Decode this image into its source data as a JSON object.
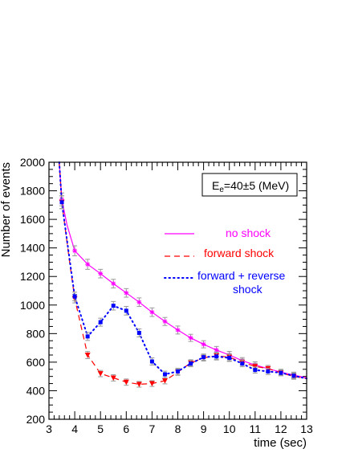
{
  "chart_data": {
    "type": "line",
    "title": "",
    "xlabel": "time (sec)",
    "ylabel": "Number of events",
    "xlim": [
      3,
      13
    ],
    "ylim": [
      200,
      2000
    ],
    "x_ticks": [
      "3",
      "4",
      "5",
      "6",
      "7",
      "8",
      "9",
      "10",
      "11",
      "12",
      "13"
    ],
    "y_ticks": [
      "200",
      "400",
      "600",
      "800",
      "1000",
      "1200",
      "1400",
      "1600",
      "1800",
      "2000"
    ],
    "grid": false,
    "legend_position": "right",
    "annotation": {
      "base": "E",
      "subscript": "e",
      "text": "=40±5 (MeV)"
    },
    "series": [
      {
        "name": "no shock",
        "color": "#ff00ff",
        "line_style": "solid",
        "marker": "star",
        "x": [
          3.5,
          4.0,
          4.5,
          5.0,
          5.5,
          6.0,
          6.5,
          7.0,
          7.5,
          8.0,
          8.5,
          9.0,
          9.5,
          10.0,
          10.5,
          11.0,
          11.5,
          12.0,
          12.5
        ],
        "y": [
          1740,
          1380,
          1285,
          1220,
          1150,
          1085,
          1020,
          950,
          885,
          825,
          770,
          725,
          685,
          650,
          610,
          580,
          555,
          530,
          510
        ],
        "y_err": [
          45,
          35,
          35,
          30,
          30,
          30,
          30,
          30,
          28,
          28,
          25,
          25,
          25,
          25,
          22,
          22,
          22,
          20,
          20
        ],
        "curve_x": [
          3.4,
          3.5,
          3.7,
          4.0,
          4.5,
          5.0,
          5.5,
          6.0,
          6.5,
          7.0,
          7.5,
          8.0,
          8.5,
          9.0,
          9.5,
          10.0,
          10.5,
          11.0,
          11.5,
          12.0,
          12.5,
          13.0
        ],
        "curve_y": [
          2000,
          1740,
          1560,
          1380,
          1285,
          1220,
          1150,
          1085,
          1020,
          950,
          885,
          825,
          770,
          725,
          685,
          650,
          610,
          580,
          555,
          530,
          510,
          490
        ]
      },
      {
        "name": "forward shock",
        "color": "#ff0000",
        "line_style": "dashed",
        "marker": "triangle-down",
        "x": [
          3.5,
          4.0,
          4.5,
          5.0,
          5.5,
          6.0,
          6.5,
          7.0,
          7.5,
          8.0,
          8.5,
          9.0,
          9.5,
          10.0,
          10.5,
          11.0,
          11.5,
          12.0,
          12.5
        ],
        "y": [
          1720,
          1045,
          650,
          520,
          490,
          460,
          445,
          450,
          470,
          530,
          595,
          630,
          645,
          635,
          600,
          570,
          555,
          525,
          500
        ],
        "y_err": [
          45,
          30,
          25,
          22,
          22,
          22,
          20,
          20,
          22,
          22,
          22,
          22,
          25,
          25,
          22,
          22,
          22,
          20,
          20
        ],
        "curve_x": [
          3.4,
          3.5,
          3.8,
          4.0,
          4.5,
          5.0,
          5.5,
          6.0,
          6.5,
          7.0,
          7.5,
          8.0,
          8.5,
          9.0,
          9.5,
          10.0,
          10.5,
          11.0,
          11.5,
          12.0,
          12.5,
          13.0
        ],
        "curve_y": [
          2000,
          1720,
          1300,
          1045,
          650,
          520,
          490,
          460,
          445,
          450,
          470,
          530,
          595,
          630,
          645,
          635,
          600,
          570,
          555,
          525,
          500,
          485
        ]
      },
      {
        "name": "forward + reverse shock",
        "color": "#0000ff",
        "line_style": "dotted",
        "marker": "square",
        "x": [
          3.5,
          4.0,
          4.5,
          5.0,
          5.5,
          6.0,
          6.5,
          7.0,
          7.5,
          8.0,
          8.5,
          9.0,
          9.5,
          10.0,
          10.5,
          11.0,
          11.5,
          12.0,
          12.5
        ],
        "y": [
          1720,
          1060,
          780,
          880,
          995,
          960,
          805,
          605,
          515,
          535,
          590,
          635,
          640,
          630,
          590,
          545,
          535,
          525,
          505
        ],
        "y_err": [
          45,
          30,
          28,
          28,
          30,
          30,
          28,
          25,
          22,
          22,
          22,
          22,
          25,
          25,
          22,
          22,
          22,
          20,
          20
        ],
        "curve_x": [
          3.4,
          3.5,
          3.8,
          4.0,
          4.5,
          5.0,
          5.5,
          6.0,
          6.5,
          7.0,
          7.5,
          8.0,
          8.5,
          9.0,
          9.5,
          10.0,
          10.5,
          11.0,
          11.5,
          12.0,
          12.5,
          13.0
        ],
        "curve_y": [
          2000,
          1720,
          1320,
          1060,
          780,
          880,
          995,
          960,
          805,
          605,
          515,
          535,
          590,
          635,
          640,
          630,
          590,
          545,
          535,
          525,
          505,
          485
        ]
      }
    ],
    "legend_entries": [
      {
        "line1": "no shock",
        "line2": ""
      },
      {
        "line1": "forward shock",
        "line2": ""
      },
      {
        "line1": "forward + reverse",
        "line2": "shock"
      }
    ]
  }
}
